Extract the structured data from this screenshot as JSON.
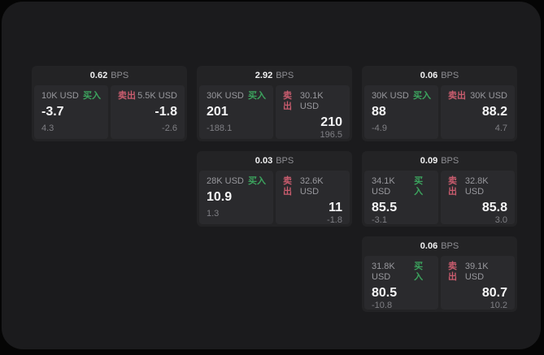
{
  "colors": {
    "buy_green": "#3ca45e",
    "sell_red": "#c95c6e",
    "window_bg": "#1b1b1d",
    "card_bg": "#232325",
    "panel_bg": "#2a2a2d"
  },
  "bps_unit_label": "BPS",
  "cards": [
    {
      "bps_value": "0.62",
      "buy": {
        "side": "买入",
        "size": "10K USD",
        "price": "-3.7",
        "delta": "4.3"
      },
      "sell": {
        "side": "卖出",
        "size": "5.5K USD",
        "price": "-1.8",
        "delta": "-2.6"
      }
    },
    {
      "bps_value": "2.92",
      "buy": {
        "side": "买入",
        "size": "30K USD",
        "price": "201",
        "delta": "-188.1"
      },
      "sell": {
        "side": "卖出",
        "size": "30.1K USD",
        "price": "210",
        "delta": "196.5"
      }
    },
    {
      "bps_value": "0.06",
      "buy": {
        "side": "买入",
        "size": "30K USD",
        "price": "88",
        "delta": "-4.9"
      },
      "sell": {
        "side": "卖出",
        "size": "30K USD",
        "price": "88.2",
        "delta": "4.7"
      }
    },
    {
      "bps_value": "0.03",
      "buy": {
        "side": "买入",
        "size": "28K USD",
        "price": "10.9",
        "delta": "1.3"
      },
      "sell": {
        "side": "卖出",
        "size": "32.6K USD",
        "price": "11",
        "delta": "-1.8"
      }
    },
    {
      "bps_value": "0.09",
      "buy": {
        "side": "买入",
        "size": "34.1K USD",
        "price": "85.5",
        "delta": "-3.1"
      },
      "sell": {
        "side": "卖出",
        "size": "32.8K USD",
        "price": "85.8",
        "delta": "3.0"
      }
    },
    {
      "bps_value": "0.06",
      "buy": {
        "side": "买入",
        "size": "31.8K USD",
        "price": "80.5",
        "delta": "-10.8"
      },
      "sell": {
        "side": "卖出",
        "size": "39.1K USD",
        "price": "80.7",
        "delta": "10.2"
      }
    }
  ]
}
